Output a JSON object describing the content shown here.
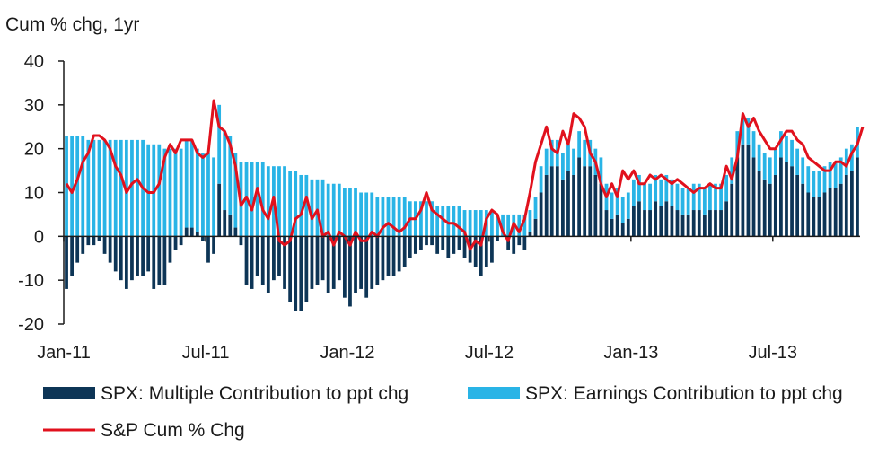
{
  "chart_data": {
    "type": "bar",
    "stacked": true,
    "ylabel": "Cum  % chg, 1yr",
    "ylim": [
      -20,
      40
    ],
    "yticks": [
      -20,
      -10,
      0,
      10,
      20,
      30,
      40
    ],
    "x_tick_labels": [
      "Jan-11",
      "Jul-11",
      "Jan-12",
      "Jul-12",
      "Jan-13",
      "Jul-13"
    ],
    "colors": {
      "multiple": "#0d3556",
      "earnings": "#29b4e6",
      "line": "#e1111d",
      "axis": "#1a1a1a"
    },
    "series": [
      {
        "name": "SPX: Multiple Contribution to ppt chg",
        "type": "bar",
        "values": [
          -12,
          -9,
          -6,
          -4,
          -2,
          -2,
          -1,
          -4,
          -6,
          -8,
          -10,
          -12,
          -10,
          -9,
          -9,
          -8,
          -12,
          -11,
          -11,
          -6,
          -3,
          -2,
          2,
          2,
          1,
          -1,
          -6,
          -4,
          12,
          6,
          5,
          2,
          -2,
          -11,
          -12,
          -9,
          -11,
          -13,
          -10,
          -9,
          -12,
          -15,
          -17,
          -17,
          -15,
          -12,
          -11,
          -10,
          -13,
          -12,
          -10,
          -14,
          -16,
          -13,
          -12,
          -14,
          -12,
          -11,
          -10,
          -9,
          -9,
          -8,
          -7,
          -5,
          -4,
          -3,
          -2,
          -2,
          -4,
          -3,
          -5,
          -4,
          -3,
          -5,
          -6,
          -7,
          -9,
          -7,
          -6,
          -1,
          0,
          -3,
          -4,
          -2,
          -3,
          1,
          4,
          10,
          14,
          16,
          16,
          13,
          15,
          14,
          18,
          16,
          16,
          14,
          12,
          6,
          4,
          5,
          3,
          4,
          7,
          8,
          6,
          6,
          8,
          7,
          8,
          7,
          6,
          5,
          5,
          6,
          6,
          5,
          6,
          6,
          6,
          8,
          12,
          18,
          21,
          21,
          18,
          15,
          13,
          12,
          14,
          18,
          17,
          16,
          14,
          12,
          10,
          9,
          9,
          10,
          11,
          11,
          12,
          14,
          15,
          18
        ]
      },
      {
        "name": "SPX: Earnings Contribution to ppt chg",
        "type": "bar",
        "values": [
          23,
          23,
          23,
          23,
          22,
          22,
          22,
          22,
          22,
          22,
          22,
          22,
          22,
          22,
          22,
          21,
          21,
          21,
          20,
          20,
          20,
          20,
          20,
          20,
          19,
          19,
          19,
          18,
          18,
          18,
          18,
          17,
          17,
          17,
          17,
          17,
          17,
          16,
          16,
          16,
          16,
          15,
          15,
          14,
          14,
          13,
          13,
          13,
          12,
          12,
          12,
          11,
          11,
          11,
          10,
          10,
          10,
          9,
          9,
          9,
          9,
          9,
          9,
          8,
          8,
          8,
          8,
          8,
          7,
          7,
          7,
          7,
          7,
          6,
          6,
          6,
          6,
          6,
          6,
          5,
          5,
          5,
          5,
          5,
          5,
          5,
          5,
          6,
          6,
          6,
          6,
          6,
          6,
          6,
          6,
          6,
          6,
          6,
          6,
          6,
          6,
          6,
          6,
          6,
          6,
          6,
          6,
          6,
          6,
          6,
          6,
          6,
          6,
          6,
          6,
          6,
          6,
          6,
          6,
          6,
          6,
          6,
          6,
          6,
          6,
          6,
          6,
          6,
          6,
          6,
          6,
          6,
          6,
          6,
          6,
          6,
          6,
          6,
          6,
          6,
          6,
          6,
          6,
          6,
          6,
          7
        ]
      },
      {
        "name": "S&P Cum % Chg",
        "type": "line",
        "values": [
          12,
          10,
          13,
          17,
          19,
          23,
          23,
          22,
          20,
          16,
          14,
          10,
          12,
          13,
          11,
          10,
          10,
          12,
          18,
          21,
          19,
          22,
          22,
          22,
          19,
          18,
          19,
          31,
          25,
          24,
          21,
          16,
          7,
          9,
          6,
          11,
          6,
          4,
          9,
          -1,
          -2,
          -1,
          4,
          5,
          9,
          4,
          6,
          0,
          1,
          -2,
          1,
          0,
          -2,
          1,
          -1,
          -1,
          1,
          0,
          2,
          3,
          2,
          1,
          2,
          4,
          4,
          6,
          10,
          6,
          5,
          4,
          3,
          3,
          2,
          1,
          -3,
          -1,
          -2,
          4,
          6,
          5,
          1,
          -1,
          3,
          1,
          4,
          10,
          17,
          21,
          25,
          20,
          19,
          24,
          21,
          28,
          27,
          25,
          19,
          17,
          12,
          9,
          12,
          9,
          15,
          13,
          15,
          12,
          12,
          14,
          13,
          14,
          13,
          12,
          13,
          12,
          11,
          10,
          11,
          11,
          12,
          11,
          11,
          16,
          13,
          18,
          28,
          25,
          27,
          24,
          22,
          20,
          20,
          22,
          24,
          24,
          22,
          21,
          18,
          17,
          16,
          15,
          15,
          17,
          17,
          16,
          19,
          21,
          25
        ]
      }
    ]
  }
}
